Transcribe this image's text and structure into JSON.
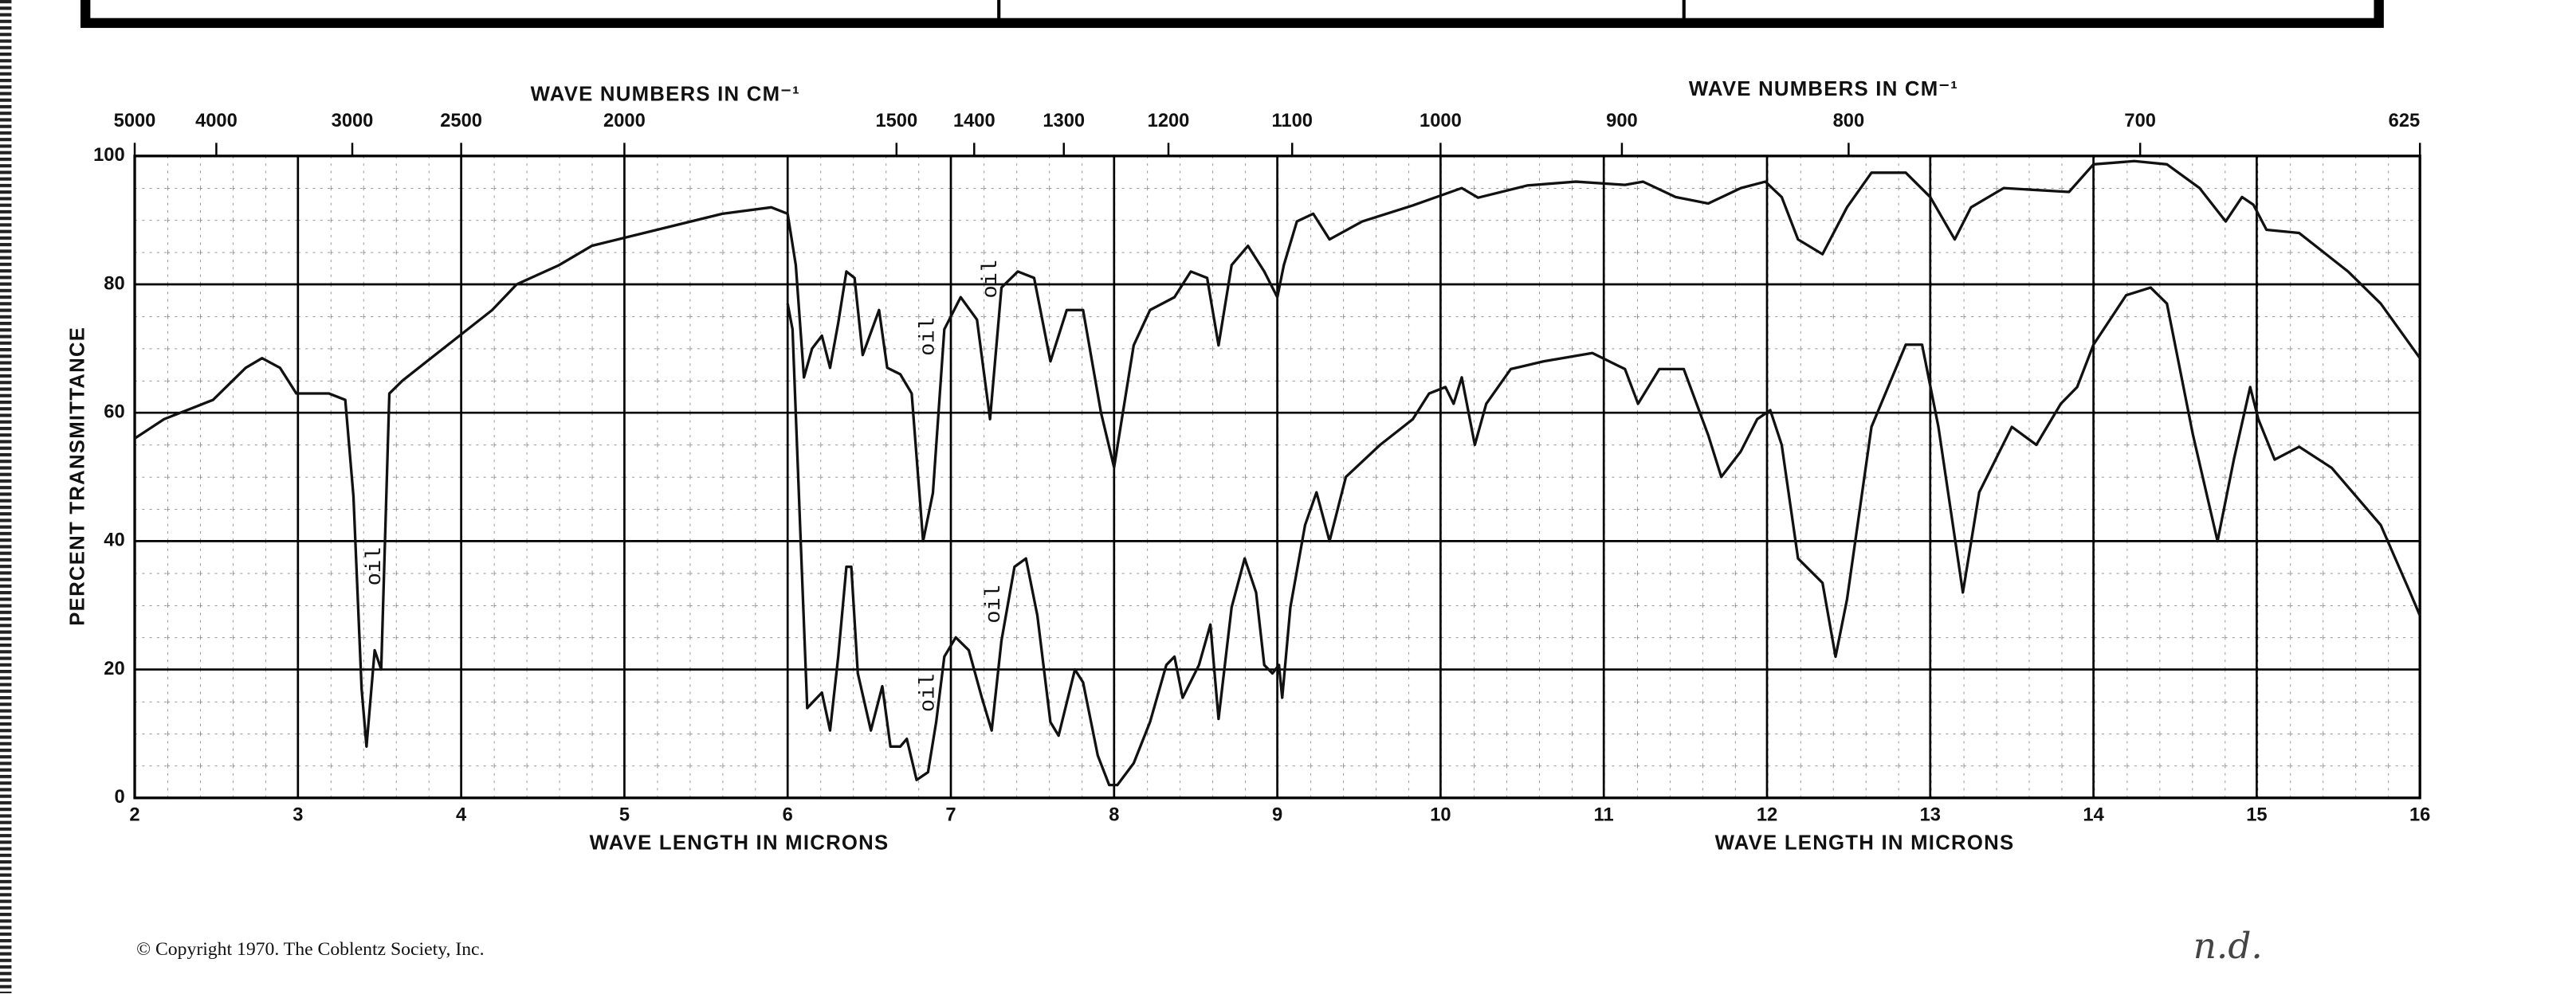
{
  "chart_data": {
    "type": "line",
    "xlabel": "WAVE LENGTH IN MICRONS",
    "x2label": "WAVE NUMBERS IN CM⁻¹",
    "ylabel": "PERCENT TRANSMITTANCE",
    "xlim": [
      2,
      16
    ],
    "ylim": [
      0,
      100
    ],
    "xticks": [
      2,
      3,
      4,
      5,
      6,
      7,
      8,
      9,
      10,
      11,
      12,
      13,
      14,
      15,
      16
    ],
    "yticks": [
      0,
      20,
      40,
      60,
      80,
      100
    ],
    "x2ticks": [
      {
        "value": 2,
        "label": "5000"
      },
      {
        "value": 2.5,
        "label": "4000"
      },
      {
        "value": 3.333,
        "label": "3000"
      },
      {
        "value": 4,
        "label": "2500"
      },
      {
        "value": 5,
        "label": "2000"
      },
      {
        "value": 6.667,
        "label": "1500"
      },
      {
        "value": 7.143,
        "label": "1400"
      },
      {
        "value": 7.692,
        "label": "1300"
      },
      {
        "value": 8.333,
        "label": "1200"
      },
      {
        "value": 9.091,
        "label": "1100"
      },
      {
        "value": 10,
        "label": "1000"
      },
      {
        "value": 11.111,
        "label": "900"
      },
      {
        "value": 12.5,
        "label": "800"
      },
      {
        "value": 14.286,
        "label": "700"
      },
      {
        "value": 16,
        "label": "625"
      }
    ],
    "grid": true,
    "annotations": [
      "oil",
      "oil",
      "oil",
      "oil",
      "oil"
    ],
    "series": [
      {
        "color": "#111111",
        "x": [
          2.0,
          2.18,
          2.48,
          2.68,
          2.78,
          2.89,
          2.99,
          3.19,
          3.29,
          3.34,
          3.39,
          3.42,
          3.47,
          3.51,
          3.56,
          3.64,
          3.79,
          3.99,
          4.19,
          4.34,
          4.6,
          4.8,
          5.2,
          5.6,
          5.9,
          6.0,
          6.05,
          6.1,
          6.15,
          6.21,
          6.26,
          6.31,
          6.36,
          6.41,
          6.46,
          6.56,
          6.61,
          6.69,
          6.76,
          6.83,
          6.89,
          6.96,
          7.06,
          7.16,
          7.24,
          7.31,
          7.41,
          7.51,
          7.61,
          7.71,
          7.81,
          7.92,
          8.0,
          8.12,
          8.22,
          8.37,
          8.47,
          8.57,
          8.64,
          8.72,
          8.82,
          8.92,
          9.0,
          9.04,
          9.12,
          9.22,
          9.32,
          9.52,
          9.83,
          10.13,
          10.23,
          10.53,
          10.83,
          11.13,
          11.24,
          11.44,
          11.64,
          11.84,
          11.99,
          12.09,
          12.19,
          12.34,
          12.49,
          12.64,
          12.85,
          13.0,
          13.15,
          13.25,
          13.45,
          13.85,
          14.0,
          14.25,
          14.45,
          14.65,
          14.81,
          14.91,
          14.98,
          15.06,
          15.26,
          15.56,
          15.76,
          16.0
        ],
        "values": [
          56,
          59,
          62,
          67,
          68.5,
          67,
          63,
          63,
          62,
          47,
          17,
          8,
          23,
          20,
          63,
          65,
          68,
          72,
          76,
          80,
          83,
          86,
          88.5,
          91,
          92,
          91,
          83,
          65.5,
          70,
          72,
          67,
          74,
          82,
          81,
          69,
          76,
          67,
          66,
          63,
          40,
          47.5,
          73,
          78,
          74.5,
          59,
          79.5,
          82,
          81,
          68,
          76,
          76,
          60,
          51.5,
          70.5,
          76,
          78,
          82,
          81,
          70.5,
          83,
          86,
          82,
          78,
          83,
          89.8,
          91,
          87,
          89.8,
          92.3,
          95,
          93.5,
          95.4,
          96,
          95.5,
          96,
          93.6,
          92.6,
          95,
          96,
          93.6,
          87,
          84.7,
          92,
          97.4,
          97.4,
          93.6,
          87,
          92,
          95,
          94.4,
          98.7,
          99.2,
          98.7,
          95,
          89.8,
          93.6,
          92.4,
          88.5,
          88,
          82,
          77,
          68.5
        ]
      },
      {
        "color": "#111111",
        "x": [
          6.0,
          6.03,
          6.08,
          6.12,
          6.18,
          6.21,
          6.26,
          6.31,
          6.36,
          6.39,
          6.43,
          6.51,
          6.58,
          6.63,
          6.69,
          6.73,
          6.79,
          6.86,
          6.91,
          6.96,
          7.03,
          7.11,
          7.19,
          7.25,
          7.31,
          7.39,
          7.46,
          7.53,
          7.61,
          7.66,
          7.76,
          7.81,
          7.9,
          7.97,
          8.02,
          8.12,
          8.22,
          8.32,
          8.37,
          8.42,
          8.52,
          8.59,
          8.64,
          8.72,
          8.8,
          8.87,
          8.92,
          8.97,
          9.01,
          9.03,
          9.08,
          9.17,
          9.24,
          9.32,
          9.42,
          9.63,
          9.83,
          9.93,
          10.03,
          10.08,
          10.13,
          10.21,
          10.28,
          10.43,
          10.63,
          10.93,
          11.13,
          11.21,
          11.34,
          11.49,
          11.64,
          11.72,
          11.84,
          11.94,
          12.02,
          12.09,
          12.19,
          12.34,
          12.42,
          12.49,
          12.64,
          12.85,
          12.95,
          13.05,
          13.2,
          13.3,
          13.5,
          13.65,
          13.8,
          13.9,
          14.0,
          14.2,
          14.35,
          14.45,
          14.61,
          14.76,
          14.86,
          14.96,
          15.01,
          15.11,
          15.26,
          15.46,
          15.76,
          15.94,
          16.0
        ],
        "values": [
          77,
          73,
          40,
          14,
          15.6,
          16.4,
          10.5,
          22,
          36,
          36,
          19.4,
          10.5,
          17.4,
          8,
          8,
          9.2,
          2.8,
          4,
          11.8,
          22,
          25,
          23,
          15.6,
          10.5,
          24.5,
          36,
          37.3,
          28.4,
          11.8,
          9.7,
          20,
          18,
          6.6,
          2,
          2,
          5.4,
          11.8,
          20.7,
          22,
          15.6,
          20.7,
          27,
          12.3,
          29.7,
          37.3,
          32,
          20.7,
          19.4,
          20.7,
          15.6,
          29.7,
          42.5,
          47.6,
          40,
          50,
          55,
          59,
          63,
          64,
          61.4,
          65.5,
          55,
          61.4,
          66.8,
          68,
          69.3,
          66.8,
          61.4,
          66.8,
          66.8,
          56.5,
          50,
          54,
          59,
          60.4,
          55,
          37.3,
          33.5,
          22,
          30.9,
          57.8,
          70.6,
          70.6,
          57.8,
          32,
          47.6,
          57.8,
          55,
          61.4,
          64,
          70.6,
          78.3,
          79.5,
          77,
          56.5,
          40,
          52.7,
          64,
          59,
          52.7,
          54.7,
          51.4,
          42.5,
          32,
          28.4
        ]
      }
    ]
  },
  "footer": {
    "copyright": "© Copyright 1970.  The Coblentz Society, Inc.",
    "handwritten_note": "n.d."
  }
}
